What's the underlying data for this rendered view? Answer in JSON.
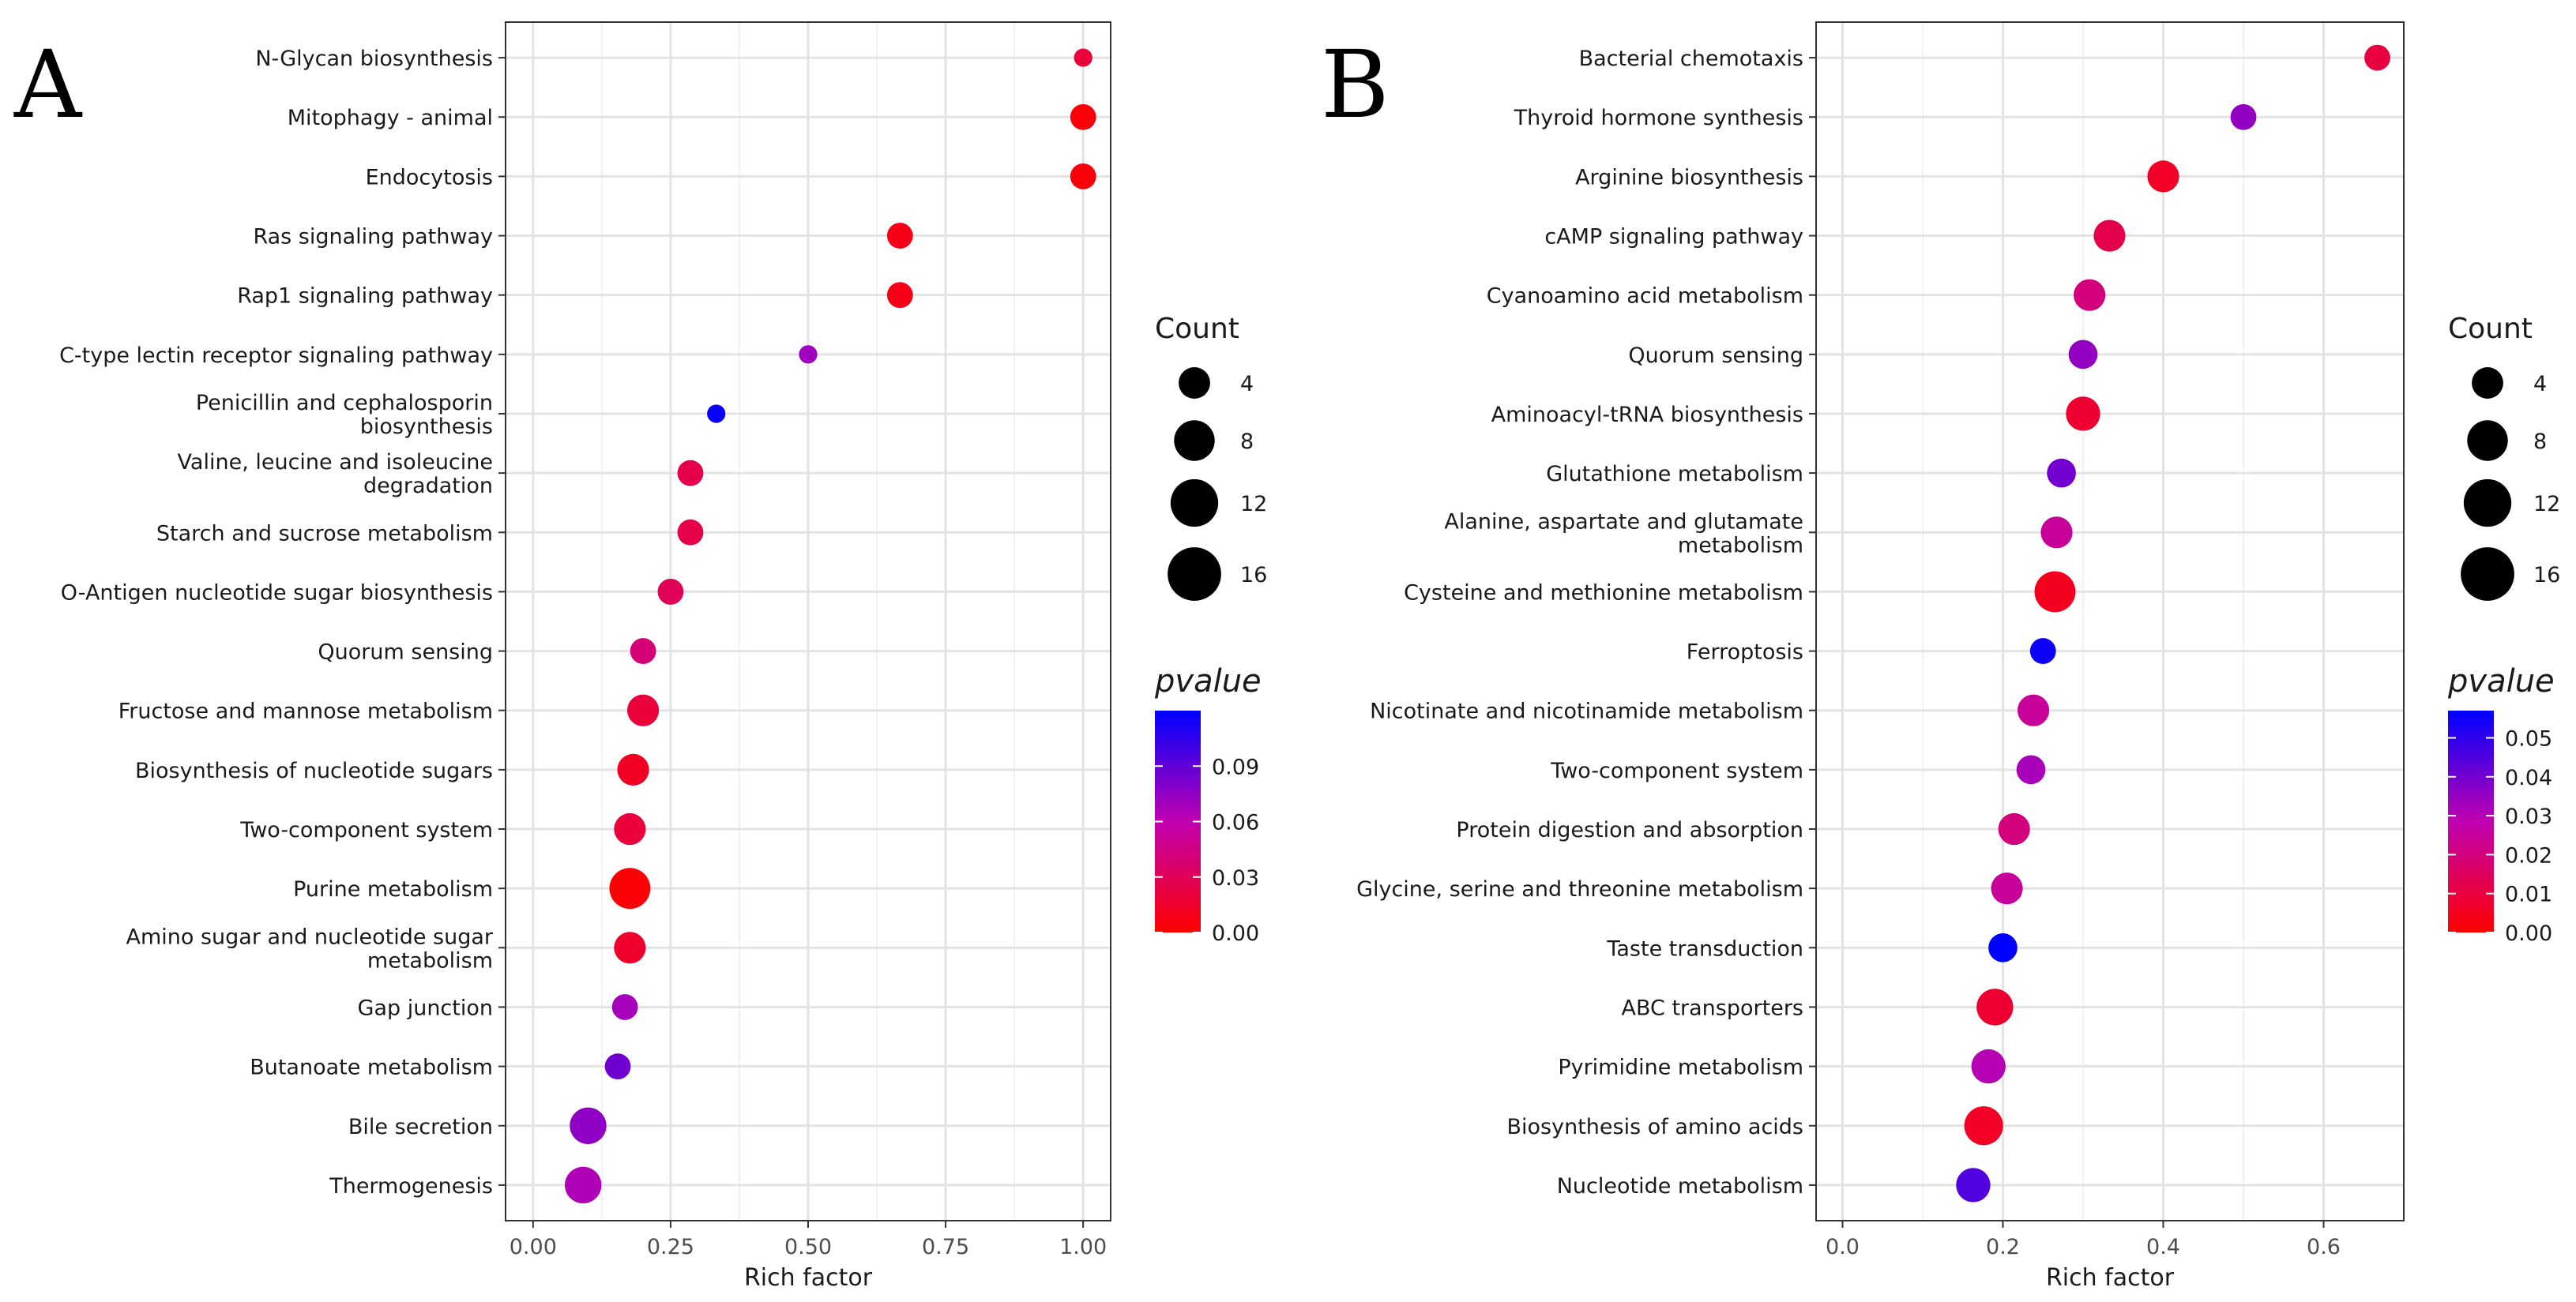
{
  "chart_data": [
    {
      "type": "scatter",
      "panel_label": "A",
      "xlabel": "Rich factor",
      "ylabel": "",
      "xlim": [
        -0.05,
        1.05
      ],
      "xticks": [
        0,
        0.25,
        0.5,
        0.75,
        1.0
      ],
      "xtick_labels": [
        "0.00",
        "0.25",
        "0.50",
        "0.75",
        "1.00"
      ],
      "grid": true,
      "size_legend": {
        "title": "Count",
        "values": [
          4,
          8,
          12,
          16
        ],
        "labels": [
          "4",
          "8",
          "12",
          "16"
        ]
      },
      "color_legend": {
        "title": "pvalue",
        "min": 0,
        "max": 0.12,
        "low_color": "#ff0000",
        "mid_color": "#c000b0",
        "high_color": "#0000ff",
        "ticks": [
          0,
          0.03,
          0.06,
          0.09
        ],
        "tick_labels": [
          "0.00",
          "0.03",
          "0.06",
          "0.09"
        ]
      },
      "points": [
        {
          "term": [
            "N-Glycan biosynthesis"
          ],
          "rich_factor": 1.0,
          "count": 2,
          "pvalue": 0.02
        },
        {
          "term": [
            "Mitophagy - animal"
          ],
          "rich_factor": 1.0,
          "count": 4,
          "pvalue": 0.003
        },
        {
          "term": [
            "Endocytosis"
          ],
          "rich_factor": 1.0,
          "count": 4,
          "pvalue": 0.003
        },
        {
          "term": [
            "Ras signaling pathway"
          ],
          "rich_factor": 0.667,
          "count": 4,
          "pvalue": 0.008
        },
        {
          "term": [
            "Rap1 signaling pathway"
          ],
          "rich_factor": 0.667,
          "count": 4,
          "pvalue": 0.008
        },
        {
          "term": [
            "C-type lectin receptor signaling pathway"
          ],
          "rich_factor": 0.5,
          "count": 2,
          "pvalue": 0.07
        },
        {
          "term": [
            "Penicillin and cephalosporin",
            "biosynthesis"
          ],
          "rich_factor": 0.333,
          "count": 2,
          "pvalue": 0.118
        },
        {
          "term": [
            "Valine, leucine and isoleucine",
            "degradation"
          ],
          "rich_factor": 0.286,
          "count": 4,
          "pvalue": 0.025
        },
        {
          "term": [
            "Starch and sucrose metabolism"
          ],
          "rich_factor": 0.286,
          "count": 4,
          "pvalue": 0.025
        },
        {
          "term": [
            "O-Antigen nucleotide sugar biosynthesis"
          ],
          "rich_factor": 0.25,
          "count": 4,
          "pvalue": 0.03
        },
        {
          "term": [
            "Quorum sensing"
          ],
          "rich_factor": 0.2,
          "count": 4,
          "pvalue": 0.04
        },
        {
          "term": [
            "Fructose and mannose metabolism"
          ],
          "rich_factor": 0.2,
          "count": 6,
          "pvalue": 0.02
        },
        {
          "term": [
            "Biosynthesis of nucleotide sugars"
          ],
          "rich_factor": 0.182,
          "count": 6,
          "pvalue": 0.012
        },
        {
          "term": [
            "Two-component system"
          ],
          "rich_factor": 0.176,
          "count": 6,
          "pvalue": 0.02
        },
        {
          "term": [
            "Purine metabolism"
          ],
          "rich_factor": 0.176,
          "count": 10,
          "pvalue": 0.002
        },
        {
          "term": [
            "Amino sugar and nucleotide sugar",
            "metabolism"
          ],
          "rich_factor": 0.176,
          "count": 6,
          "pvalue": 0.015
        },
        {
          "term": [
            "Gap junction"
          ],
          "rich_factor": 0.167,
          "count": 4,
          "pvalue": 0.068
        },
        {
          "term": [
            "Butanoate metabolism"
          ],
          "rich_factor": 0.154,
          "count": 4,
          "pvalue": 0.085
        },
        {
          "term": [
            "Bile secretion"
          ],
          "rich_factor": 0.1,
          "count": 8,
          "pvalue": 0.075
        },
        {
          "term": [
            "Thermogenesis"
          ],
          "rich_factor": 0.091,
          "count": 8,
          "pvalue": 0.065
        }
      ]
    },
    {
      "type": "scatter",
      "panel_label": "B",
      "xlabel": "Rich factor",
      "ylabel": "",
      "xlim": [
        -0.033,
        0.7
      ],
      "xticks": [
        0,
        0.2,
        0.4,
        0.6
      ],
      "xtick_labels": [
        "0.0",
        "0.2",
        "0.4",
        "0.6"
      ],
      "grid": true,
      "size_legend": {
        "title": "Count",
        "values": [
          4,
          8,
          12,
          16
        ],
        "labels": [
          "4",
          "8",
          "12",
          "16"
        ]
      },
      "color_legend": {
        "title": "pvalue",
        "min": 0,
        "max": 0.057,
        "low_color": "#ff0000",
        "mid_color": "#c000b0",
        "high_color": "#0000ff",
        "ticks": [
          0,
          0.01,
          0.02,
          0.03,
          0.04,
          0.05
        ],
        "tick_labels": [
          "0.00",
          "0.01",
          "0.02",
          "0.03",
          "0.04",
          "0.05"
        ]
      },
      "points": [
        {
          "term": [
            "Bacterial chemotaxis"
          ],
          "rich_factor": 0.667,
          "count": 4,
          "pvalue": 0.01
        },
        {
          "term": [
            "Thyroid hormone synthesis"
          ],
          "rich_factor": 0.5,
          "count": 4,
          "pvalue": 0.035
        },
        {
          "term": [
            "Arginine biosynthesis"
          ],
          "rich_factor": 0.4,
          "count": 6,
          "pvalue": 0.006
        },
        {
          "term": [
            "cAMP signaling pathway"
          ],
          "rich_factor": 0.333,
          "count": 6,
          "pvalue": 0.012
        },
        {
          "term": [
            "Cyanoamino acid metabolism"
          ],
          "rich_factor": 0.308,
          "count": 6,
          "pvalue": 0.02
        },
        {
          "term": [
            "Quorum sensing"
          ],
          "rich_factor": 0.3,
          "count": 5,
          "pvalue": 0.035
        },
        {
          "term": [
            "Aminoacyl-tRNA biosynthesis"
          ],
          "rich_factor": 0.3,
          "count": 7,
          "pvalue": 0.008
        },
        {
          "term": [
            "Glutathione metabolism"
          ],
          "rich_factor": 0.273,
          "count": 5,
          "pvalue": 0.04
        },
        {
          "term": [
            "Alanine, aspartate and glutamate",
            "metabolism"
          ],
          "rich_factor": 0.267,
          "count": 6,
          "pvalue": 0.025
        },
        {
          "term": [
            "Cysteine and methionine metabolism"
          ],
          "rich_factor": 0.265,
          "count": 10,
          "pvalue": 0.005
        },
        {
          "term": [
            "Ferroptosis"
          ],
          "rich_factor": 0.25,
          "count": 4,
          "pvalue": 0.055
        },
        {
          "term": [
            "Nicotinate and nicotinamide metabolism"
          ],
          "rich_factor": 0.238,
          "count": 6,
          "pvalue": 0.025
        },
        {
          "term": [
            "Two-component system"
          ],
          "rich_factor": 0.235,
          "count": 5,
          "pvalue": 0.032
        },
        {
          "term": [
            "Protein digestion and absorption"
          ],
          "rich_factor": 0.214,
          "count": 6,
          "pvalue": 0.02
        },
        {
          "term": [
            "Glycine, serine and threonine metabolism"
          ],
          "rich_factor": 0.205,
          "count": 6,
          "pvalue": 0.025
        },
        {
          "term": [
            "Taste transduction"
          ],
          "rich_factor": 0.2,
          "count": 5,
          "pvalue": 0.057
        },
        {
          "term": [
            "ABC transporters"
          ],
          "rich_factor": 0.19,
          "count": 8,
          "pvalue": 0.008
        },
        {
          "term": [
            "Pyrimidine metabolism"
          ],
          "rich_factor": 0.182,
          "count": 7,
          "pvalue": 0.03
        },
        {
          "term": [
            "Biosynthesis of amino acids"
          ],
          "rich_factor": 0.176,
          "count": 9,
          "pvalue": 0.006
        },
        {
          "term": [
            "Nucleotide metabolism"
          ],
          "rich_factor": 0.163,
          "count": 7,
          "pvalue": 0.045
        }
      ]
    }
  ]
}
